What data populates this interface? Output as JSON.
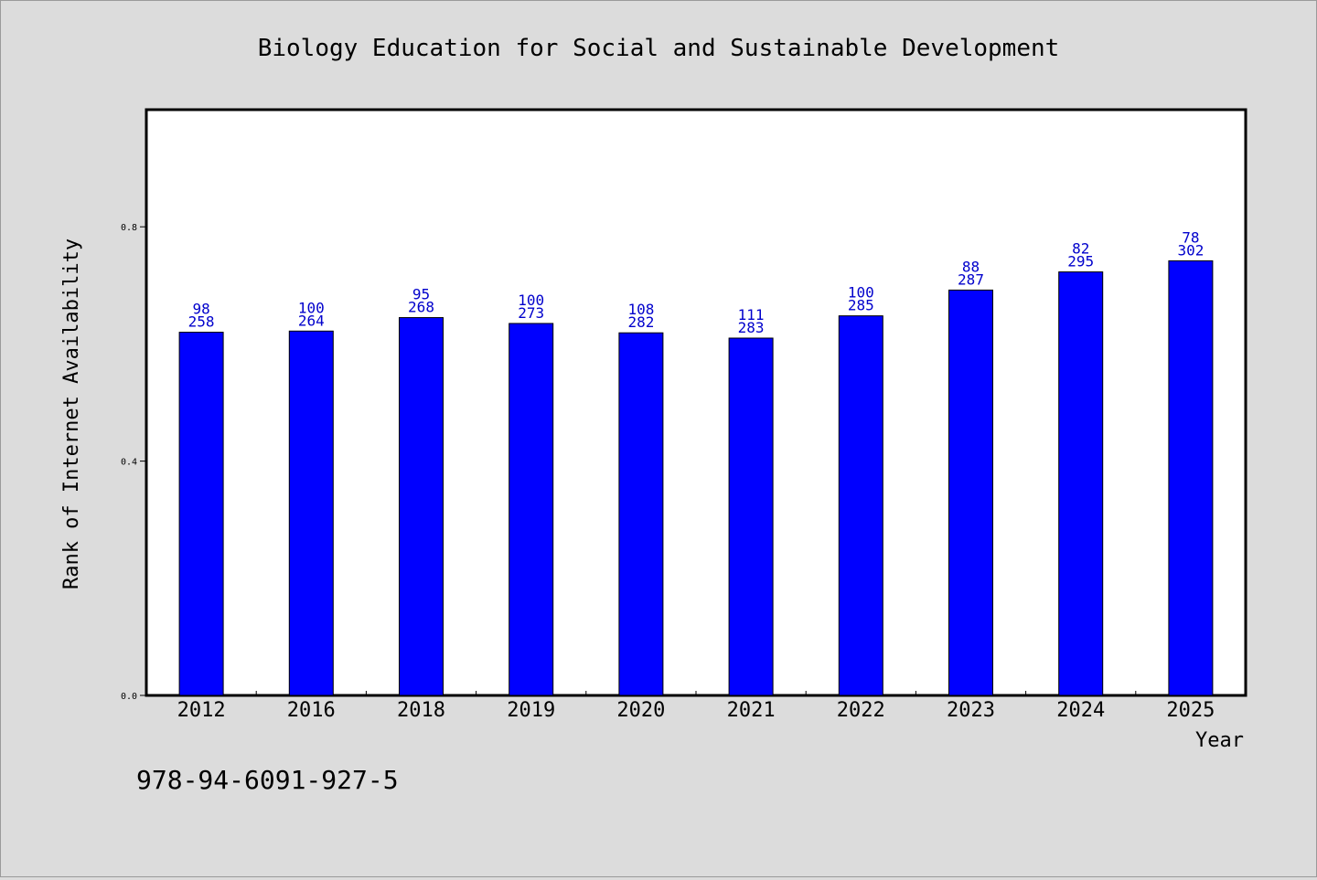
{
  "chart_data": {
    "type": "bar",
    "title": "Biology Education for Social and Sustainable Development",
    "xlabel": "Year",
    "ylabel": "Rank of Internet Availability",
    "categories": [
      "2012",
      "2016",
      "2018",
      "2019",
      "2020",
      "2021",
      "2022",
      "2023",
      "2024",
      "2025"
    ],
    "series": [
      {
        "values": [
          0.62,
          0.622,
          0.645,
          0.635,
          0.619,
          0.61,
          0.648,
          0.692,
          0.723,
          0.742
        ],
        "label_top": [
          "98",
          "100",
          "95",
          "100",
          "108",
          "111",
          "100",
          "88",
          "82",
          "78"
        ],
        "label_bottom": [
          "258",
          "264",
          "268",
          "273",
          "282",
          "283",
          "285",
          "287",
          "295",
          "302"
        ]
      }
    ],
    "ylim": [
      0,
      1.0
    ],
    "yticks": [
      0.0,
      0.4,
      0.8
    ],
    "ytick_labels": [
      "0.0",
      "0.4",
      "0.8"
    ],
    "grid": false,
    "legend": "none",
    "bar_color": "#0000ff",
    "label_color": "#0000cc"
  },
  "footer": {
    "isbn": "978-94-6091-927-5"
  }
}
